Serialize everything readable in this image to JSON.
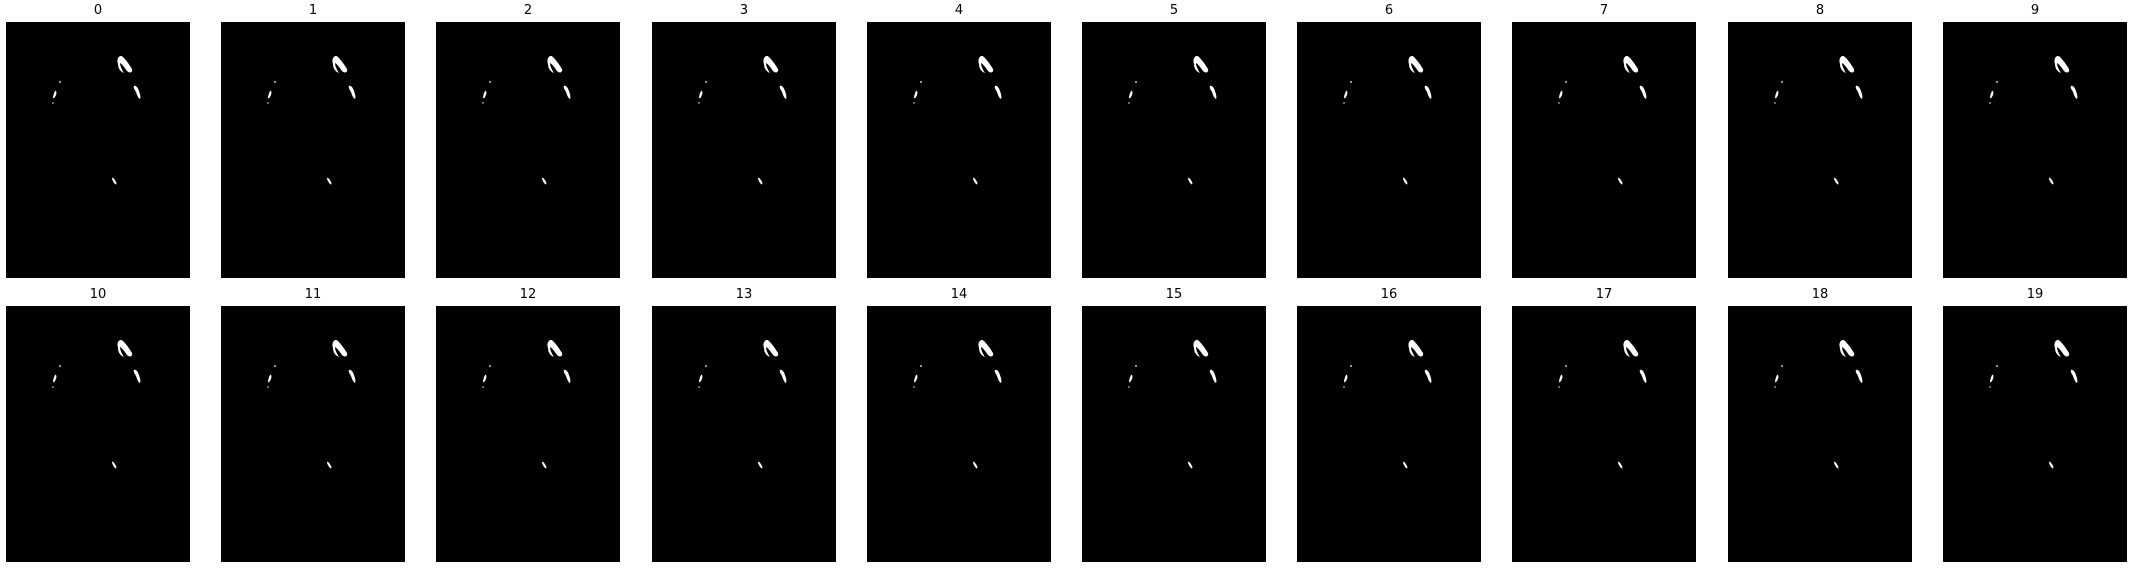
{
  "panels": [
    {
      "title": "0"
    },
    {
      "title": "1"
    },
    {
      "title": "2"
    },
    {
      "title": "3"
    },
    {
      "title": "4"
    },
    {
      "title": "5"
    },
    {
      "title": "6"
    },
    {
      "title": "7"
    },
    {
      "title": "8"
    },
    {
      "title": "9"
    },
    {
      "title": "10"
    },
    {
      "title": "11"
    },
    {
      "title": "12"
    },
    {
      "title": "13"
    },
    {
      "title": "14"
    },
    {
      "title": "15"
    },
    {
      "title": "16"
    },
    {
      "title": "17"
    },
    {
      "title": "18"
    },
    {
      "title": "19"
    }
  ],
  "colors": {
    "background": "#000000",
    "foreground": "#ffffff",
    "page": "#ffffff"
  }
}
